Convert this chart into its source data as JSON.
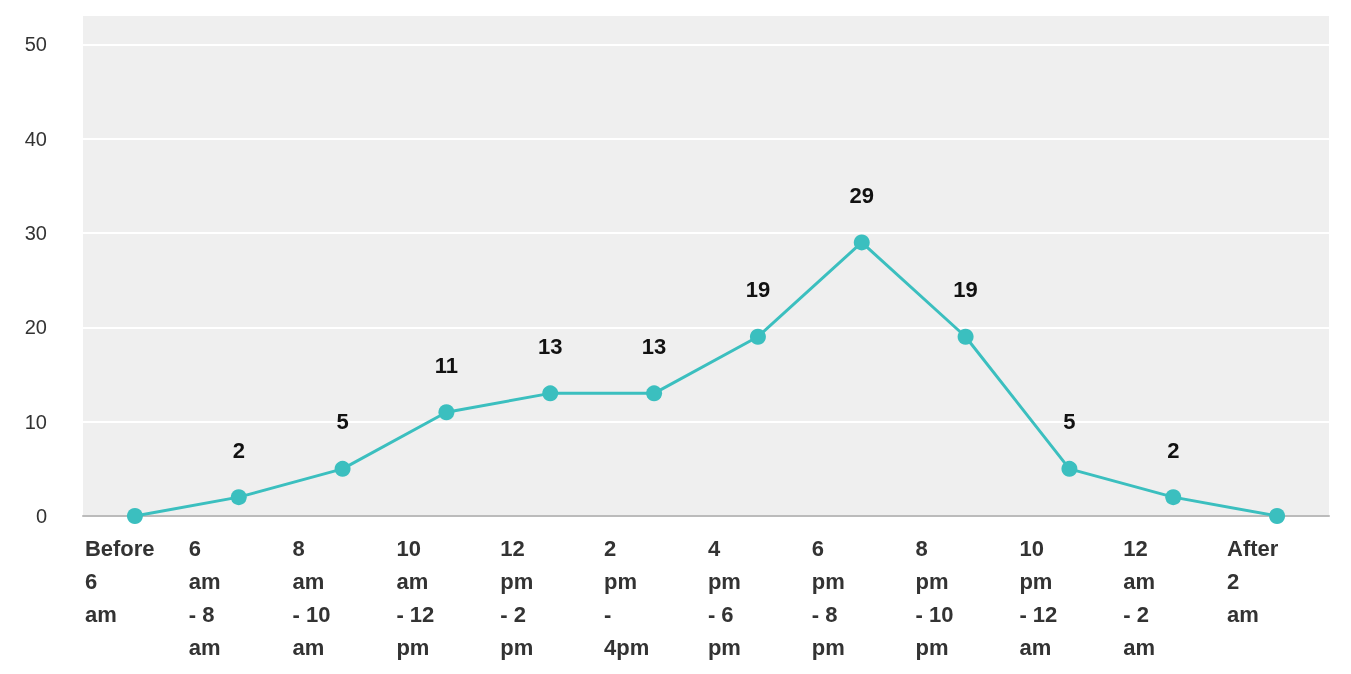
{
  "chart_data": {
    "type": "line",
    "categories": [
      "Before 6 am",
      "6 am - 8 am",
      "8 am - 10 am",
      "10 am - 12 pm",
      "12 pm - 2 pm",
      "2 pm - 4pm",
      "4 pm - 6 pm",
      "6 pm - 8 pm",
      "8 pm - 10 pm",
      "10 pm - 12 am",
      "12 am - 2 am",
      "After 2 am"
    ],
    "series": [
      {
        "color": "#3bbfbf",
        "values": [
          0,
          2,
          5,
          11,
          13,
          13,
          19,
          29,
          19,
          5,
          2,
          0
        ]
      }
    ],
    "value_labels": [
      null,
      "2",
      "5",
      "11",
      "13",
      "13",
      "19",
      "29",
      "19",
      "5",
      "2",
      null
    ],
    "ylim": [
      0,
      53
    ],
    "yticks": [
      0,
      10,
      20,
      30,
      40,
      50
    ],
    "grid": "y",
    "marker": "circle",
    "line_style": "solid"
  }
}
